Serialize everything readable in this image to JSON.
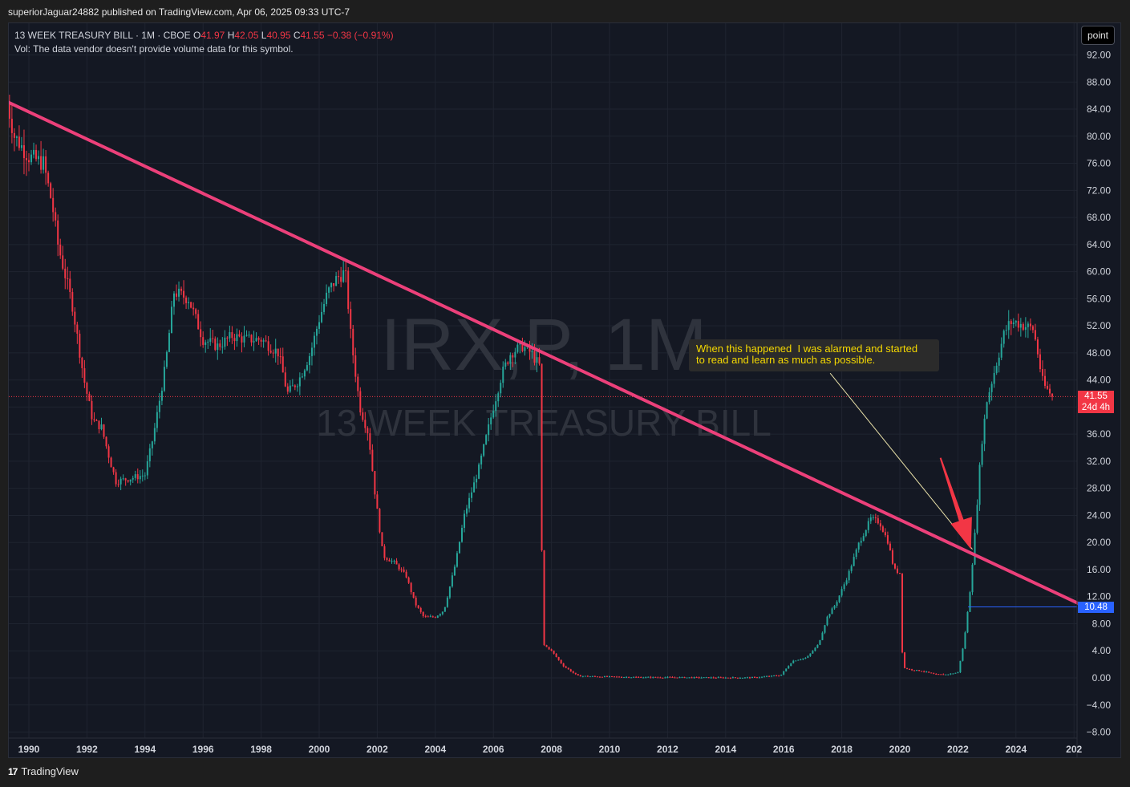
{
  "publish_line": "superiorJaguar24882 published on TradingView.com, Apr 06, 2025 09:33 UTC-7",
  "legend": {
    "symbol": "13 WEEK TREASURY BILL · 1M · CBOE",
    "o_label": "O",
    "o": "41.97",
    "h_label": "H",
    "h": "42.05",
    "l_label": "L",
    "l": "40.95",
    "c_label": "C",
    "c": "41.55",
    "change": "−0.38 (−0.91%)",
    "vol": "Vol: The data vendor doesn't provide volume data for this symbol."
  },
  "scale_button": "point",
  "watermark": {
    "line1": "IRX,P, 1M",
    "line2": "13 WEEK TREASURY BILL"
  },
  "annotation": "When this happened  I was alarmed and started\nto read and learn as much as possible.",
  "price_tag": {
    "value": "41.55",
    "countdown": "24d 4h"
  },
  "level_tag": "10.48",
  "footer": {
    "brand": "TradingView",
    "logo": "tradingview-logo-icon"
  },
  "colors": {
    "up": "#26a69a",
    "down": "#f23645",
    "trendline": "#ec407a",
    "arrow": "#f23645",
    "level": "#2962ff"
  },
  "chart_data": {
    "type": "candlestick",
    "timeframe": "1M",
    "ylim": [
      -8,
      94
    ],
    "y_ticks": [
      "92.00",
      "88.00",
      "84.00",
      "80.00",
      "76.00",
      "72.00",
      "68.00",
      "64.00",
      "60.00",
      "56.00",
      "52.00",
      "48.00",
      "44.00",
      "40.00",
      "36.00",
      "32.00",
      "28.00",
      "24.00",
      "20.00",
      "16.00",
      "12.00",
      "8.00",
      "4.00",
      "0.00",
      "−4.00",
      "−8.00"
    ],
    "x_ticks": [
      "1990",
      "1992",
      "1994",
      "1996",
      "1998",
      "2000",
      "2002",
      "2004",
      "2006",
      "2008",
      "2010",
      "2012",
      "2014",
      "2016",
      "2018",
      "2020",
      "2022",
      "2024",
      "202"
    ],
    "close_path": [
      [
        1989.25,
        85
      ],
      [
        1989.5,
        80
      ],
      [
        1990.0,
        77
      ],
      [
        1990.5,
        76
      ],
      [
        1990.8,
        70
      ],
      [
        1991.0,
        64
      ],
      [
        1991.5,
        55
      ],
      [
        1991.9,
        44
      ],
      [
        1992.2,
        38
      ],
      [
        1992.5,
        37
      ],
      [
        1992.8,
        32
      ],
      [
        1993.0,
        29
      ],
      [
        1993.5,
        29.5
      ],
      [
        1994.0,
        30
      ],
      [
        1994.3,
        36
      ],
      [
        1994.7,
        46
      ],
      [
        1995.0,
        57
      ],
      [
        1995.5,
        56
      ],
      [
        1996.0,
        50
      ],
      [
        1996.5,
        49
      ],
      [
        1997.0,
        50.5
      ],
      [
        1997.5,
        50
      ],
      [
        1998.0,
        50
      ],
      [
        1998.6,
        48
      ],
      [
        1998.9,
        42
      ],
      [
        1999.3,
        44
      ],
      [
        1999.7,
        48
      ],
      [
        2000.0,
        53
      ],
      [
        2000.3,
        57
      ],
      [
        2000.6,
        59
      ],
      [
        2000.9,
        60
      ],
      [
        2001.1,
        50
      ],
      [
        2001.4,
        40
      ],
      [
        2001.7,
        36
      ],
      [
        2001.9,
        28
      ],
      [
        2002.2,
        18
      ],
      [
        2002.6,
        17
      ],
      [
        2003.0,
        15
      ],
      [
        2003.3,
        11
      ],
      [
        2003.6,
        9
      ],
      [
        2004.0,
        9
      ],
      [
        2004.3,
        10
      ],
      [
        2004.7,
        17
      ],
      [
        2005.0,
        24
      ],
      [
        2005.5,
        31
      ],
      [
        2006.0,
        40
      ],
      [
        2006.3,
        45
      ],
      [
        2006.6,
        48
      ],
      [
        2007.0,
        49
      ],
      [
        2007.3,
        48
      ],
      [
        2007.6,
        46
      ],
      [
        2007.7,
        5
      ],
      [
        2008.0,
        4
      ],
      [
        2008.4,
        1.8
      ],
      [
        2008.9,
        0.3
      ],
      [
        2009.5,
        0.2
      ],
      [
        2011.0,
        0.1
      ],
      [
        2013.0,
        0.05
      ],
      [
        2014.0,
        0.03
      ],
      [
        2015.0,
        0.05
      ],
      [
        2015.9,
        0.4
      ],
      [
        2016.3,
        2.5
      ],
      [
        2016.8,
        3.0
      ],
      [
        2017.2,
        5.0
      ],
      [
        2017.5,
        9.0
      ],
      [
        2017.8,
        11.0
      ],
      [
        2018.2,
        15.0
      ],
      [
        2018.6,
        20.0
      ],
      [
        2019.0,
        23.5
      ],
      [
        2019.3,
        23.0
      ],
      [
        2019.6,
        20.0
      ],
      [
        2019.8,
        16.0
      ],
      [
        2020.0,
        15.5
      ],
      [
        2020.1,
        1.5
      ],
      [
        2020.4,
        1.2
      ],
      [
        2020.8,
        1.0
      ],
      [
        2021.2,
        0.5
      ],
      [
        2021.6,
        0.5
      ],
      [
        2022.0,
        0.8
      ],
      [
        2022.2,
        5.0
      ],
      [
        2022.4,
        12.0
      ],
      [
        2022.6,
        22.0
      ],
      [
        2022.8,
        34.0
      ],
      [
        2023.0,
        41.0
      ],
      [
        2023.3,
        46.0
      ],
      [
        2023.6,
        51.0
      ],
      [
        2023.8,
        52.5
      ],
      [
        2024.0,
        52.5
      ],
      [
        2024.3,
        52.0
      ],
      [
        2024.6,
        51.5
      ],
      [
        2024.75,
        48.0
      ],
      [
        2024.9,
        44.0
      ],
      [
        2025.0,
        43.0
      ],
      [
        2025.15,
        42.2
      ],
      [
        2025.25,
        41.55
      ]
    ],
    "last": {
      "open": 41.97,
      "high": 42.05,
      "low": 40.95,
      "close": 41.55
    },
    "trendline": {
      "start": [
        1989.1,
        85.4
      ],
      "end": [
        2026.4,
        10.5
      ]
    },
    "horizontal_level": {
      "value": 10.48,
      "from": 2022.35
    },
    "arrow": {
      "from": [
        2021.4,
        32.5
      ],
      "to": [
        2022.45,
        19.0
      ]
    },
    "note_connector": {
      "from": [
        2017.6,
        45.0
      ],
      "to": [
        2022.5,
        19.0
      ]
    }
  }
}
